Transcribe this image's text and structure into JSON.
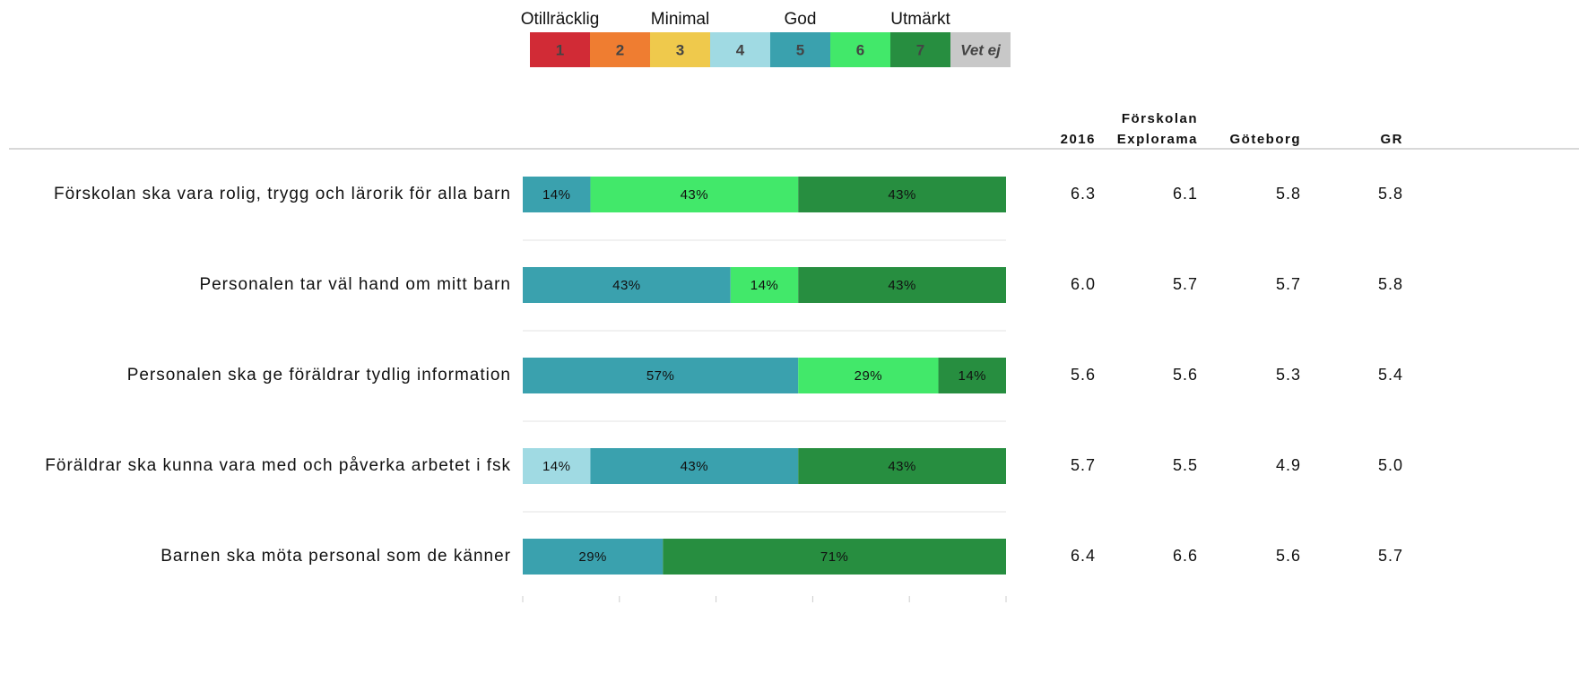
{
  "chart_data": {
    "type": "bar",
    "orientation": "horizontal",
    "stacked": true,
    "categories": [
      "Förskolan ska vara rolig, trygg och lärorik för alla barn",
      "Personalen tar väl hand om mitt barn",
      "Personalen ska ge föräldrar tydlig information",
      "Föräldrar ska kunna vara med och påverka arbetet i fsk",
      "Barnen ska möta personal som de känner"
    ],
    "series": [
      {
        "name": "1",
        "color": "#d12b36",
        "values": [
          null,
          null,
          null,
          null,
          null
        ]
      },
      {
        "name": "2",
        "color": "#ef7d31",
        "values": [
          null,
          null,
          null,
          null,
          null
        ]
      },
      {
        "name": "3",
        "color": "#efc94c",
        "values": [
          null,
          null,
          null,
          null,
          null
        ]
      },
      {
        "name": "4",
        "color": "#a0dae3",
        "values": [
          null,
          null,
          null,
          14,
          null
        ],
        "value_labels": [
          null,
          null,
          null,
          "14%",
          null
        ]
      },
      {
        "name": "5",
        "color": "#3aa1ae",
        "values": [
          14,
          43,
          57,
          43,
          29
        ],
        "value_labels": [
          "14%",
          "43%",
          "57%",
          "43%",
          "29%"
        ]
      },
      {
        "name": "6",
        "color": "#42e86a",
        "values": [
          43,
          14,
          29,
          null,
          null
        ],
        "value_labels": [
          "43%",
          "14%",
          "29%",
          null,
          null
        ]
      },
      {
        "name": "7",
        "color": "#278e40",
        "values": [
          43,
          43,
          14,
          43,
          71
        ],
        "value_labels": [
          "43%",
          "43%",
          "14%",
          "43%",
          "71%"
        ]
      },
      {
        "name": "Vet ej",
        "color": "#c8c8c8",
        "values": [
          null,
          null,
          null,
          null,
          null
        ]
      }
    ],
    "scale_labels": [
      "Otillräcklig",
      null,
      "Minimal",
      null,
      "God",
      null,
      "Utmärkt",
      null
    ],
    "xlim": [
      0,
      100
    ],
    "xticks": [
      0,
      20,
      40,
      60,
      80,
      100
    ],
    "table": {
      "columns": [
        [
          "2016"
        ],
        [
          "Förskolan",
          "Explorama"
        ],
        [
          "Göteborg"
        ],
        [
          "GR"
        ]
      ],
      "rows": [
        [
          "6.3",
          "6.1",
          "5.8",
          "5.8"
        ],
        [
          "6.0",
          "5.7",
          "5.7",
          "5.8"
        ],
        [
          "5.6",
          "5.6",
          "5.3",
          "5.4"
        ],
        [
          "5.7",
          "5.5",
          "4.9",
          "5.0"
        ],
        [
          "6.4",
          "6.6",
          "5.6",
          "5.7"
        ]
      ]
    }
  }
}
